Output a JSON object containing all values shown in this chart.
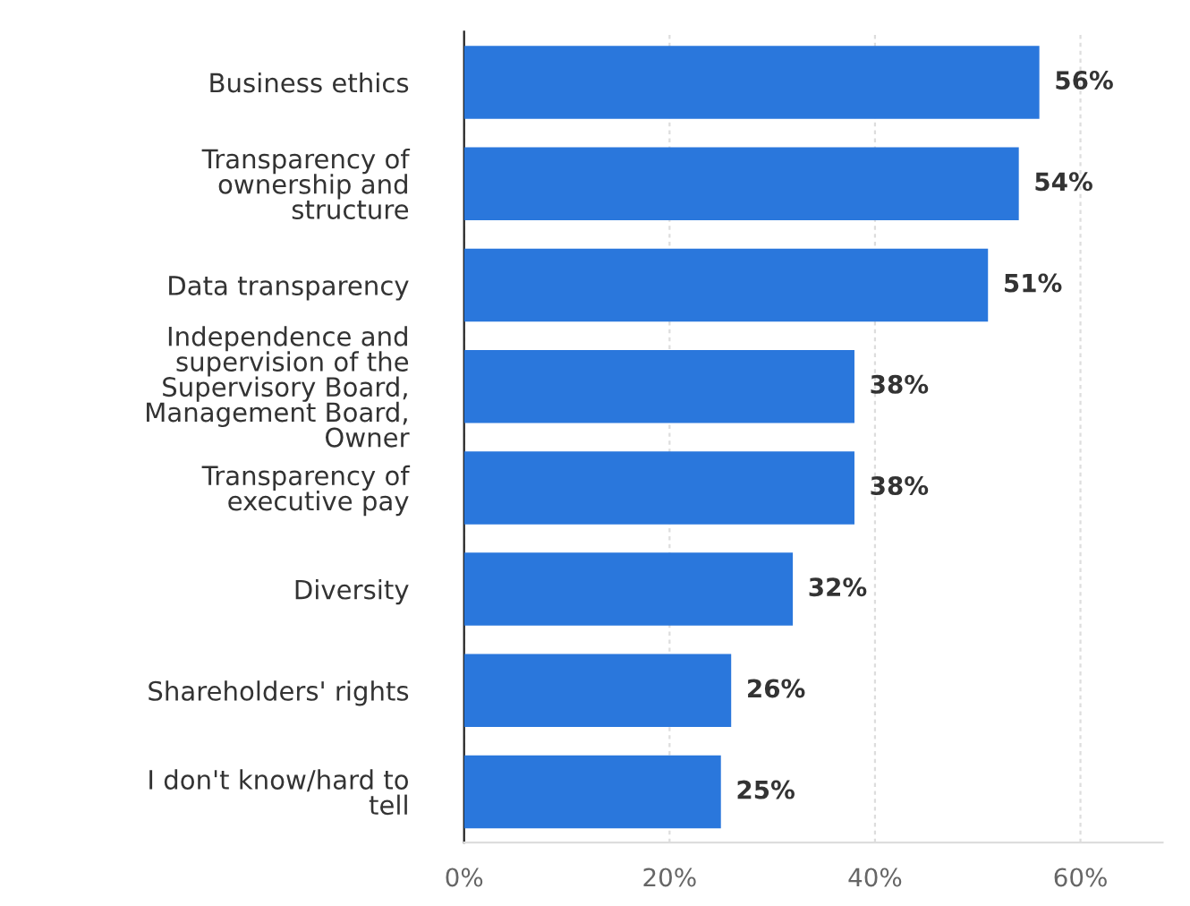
{
  "chart_data": {
    "type": "bar",
    "orientation": "horizontal",
    "categories": [
      "Business ethics",
      "Transparency of\nownership and\nstructure",
      "Data transparency",
      "Independence and\nsupervision of the\nSupervisory Board,\nManagement Board,\nOwner",
      "Transparency of\nexecutive pay",
      "Diversity",
      "Shareholders' rights",
      "I don't know/hard to\ntell"
    ],
    "values": [
      56,
      54,
      51,
      38,
      38,
      32,
      26,
      25
    ],
    "value_labels": [
      "56%",
      "54%",
      "51%",
      "38%",
      "38%",
      "32%",
      "26%",
      "25%"
    ],
    "color": "#2a77dc",
    "xlim": [
      0,
      68
    ],
    "xticks": [
      {
        "value": 0,
        "label": "0%"
      },
      {
        "value": 20,
        "label": "20%"
      },
      {
        "value": 40,
        "label": "40%"
      },
      {
        "value": 60,
        "label": "60%"
      }
    ],
    "grid": "x"
  }
}
